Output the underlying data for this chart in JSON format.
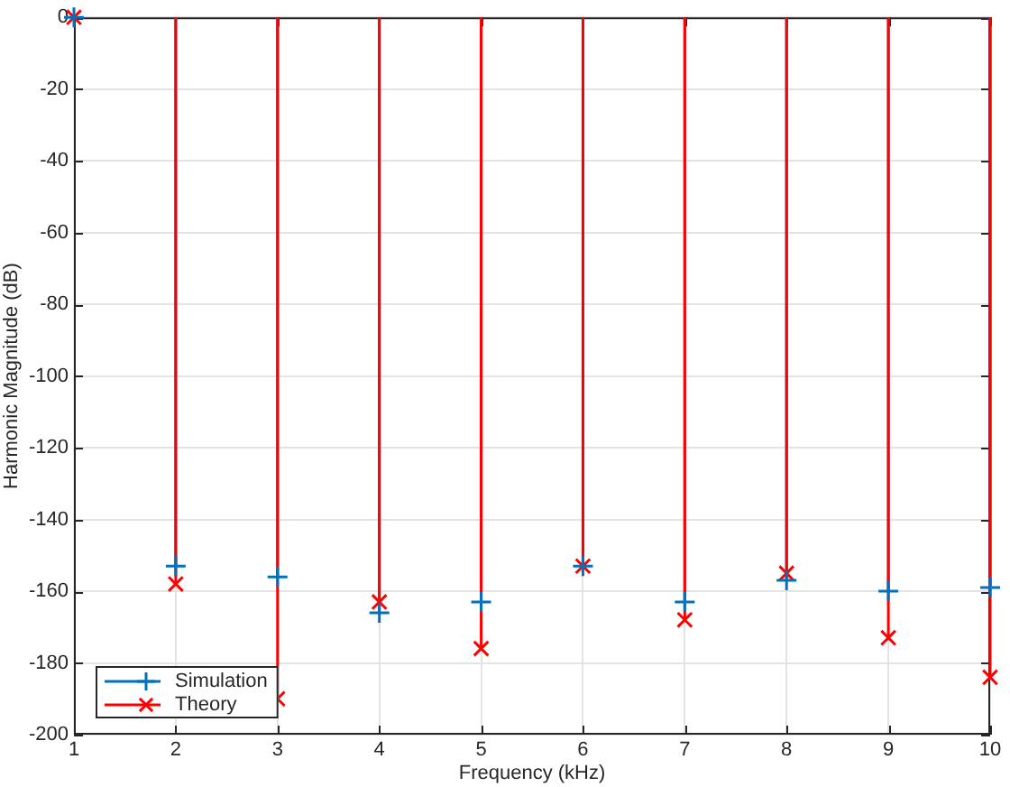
{
  "chart_data": {
    "type": "lollipop",
    "xlabel": "Frequency (kHz)",
    "ylabel": "Harmonic Magnitude (dB)",
    "x": [
      1,
      2,
      3,
      4,
      5,
      6,
      7,
      8,
      9,
      10
    ],
    "series": [
      {
        "name": "Simulation",
        "color": "#0072bd",
        "marker": "cross",
        "values": [
          0,
          -153,
          -156,
          -166,
          -163,
          -153,
          -163,
          -157,
          -160,
          -159
        ]
      },
      {
        "name": "Theory",
        "color": "#ff0000",
        "marker": "x",
        "values": [
          0,
          -158,
          -190,
          -163,
          -176,
          -153,
          -168,
          -155,
          -173,
          -184
        ]
      }
    ],
    "xlim": [
      1,
      10
    ],
    "ylim": [
      -200,
      0
    ],
    "xticks": [
      1,
      2,
      3,
      4,
      5,
      6,
      7,
      8,
      9,
      10
    ],
    "yticks": [
      -200,
      -180,
      -160,
      -140,
      -120,
      -100,
      -80,
      -60,
      -40,
      -20,
      0
    ],
    "grid": true,
    "legend": "bottom left"
  }
}
